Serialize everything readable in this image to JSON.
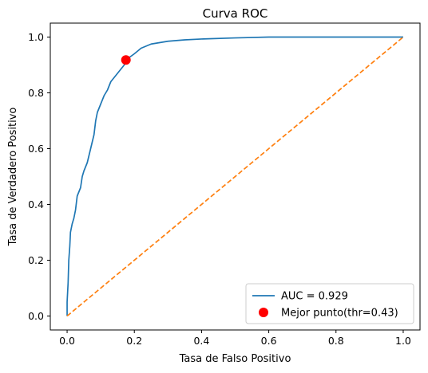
{
  "chart_data": {
    "type": "line",
    "title": "Curva ROC",
    "xlabel": "Tasa de Falso Positivo",
    "ylabel": "Tasa de Verdadero Positivo",
    "xlim": [
      -0.05,
      1.05
    ],
    "ylim": [
      -0.05,
      1.05
    ],
    "x_ticks": [
      0.0,
      0.2,
      0.4,
      0.6,
      0.8,
      1.0
    ],
    "y_ticks": [
      0.0,
      0.2,
      0.4,
      0.6,
      0.8,
      1.0
    ],
    "x_tick_labels": [
      "0.0",
      "0.2",
      "0.4",
      "0.6",
      "0.8",
      "1.0"
    ],
    "y_tick_labels": [
      "0.0",
      "0.2",
      "0.4",
      "0.6",
      "0.8",
      "1.0"
    ],
    "grid": false,
    "legend_position": "bottom-right",
    "series": [
      {
        "name": "AUC = 0.929",
        "kind": "line",
        "color": "#1f77b4",
        "x": [
          0.0,
          0.0,
          0.003,
          0.005,
          0.008,
          0.01,
          0.015,
          0.02,
          0.025,
          0.03,
          0.04,
          0.045,
          0.05,
          0.06,
          0.07,
          0.08,
          0.085,
          0.09,
          0.1,
          0.11,
          0.12,
          0.13,
          0.15,
          0.17,
          0.175,
          0.2,
          0.22,
          0.25,
          0.3,
          0.35,
          0.4,
          0.5,
          0.6,
          0.8,
          1.0
        ],
        "y": [
          0.0,
          0.05,
          0.12,
          0.2,
          0.25,
          0.3,
          0.33,
          0.35,
          0.38,
          0.43,
          0.46,
          0.5,
          0.52,
          0.55,
          0.6,
          0.65,
          0.7,
          0.73,
          0.76,
          0.79,
          0.81,
          0.84,
          0.87,
          0.9,
          0.918,
          0.94,
          0.96,
          0.975,
          0.985,
          0.99,
          0.993,
          0.997,
          1.0,
          1.0,
          1.0
        ]
      },
      {
        "name": "",
        "kind": "dashed-line",
        "color": "#ff7f0e",
        "x": [
          0.0,
          1.0
        ],
        "y": [
          0.0,
          1.0
        ]
      },
      {
        "name": "Mejor punto(thr=0.43)",
        "kind": "scatter",
        "color": "#ff0000",
        "x": [
          0.175
        ],
        "y": [
          0.918
        ]
      }
    ]
  }
}
